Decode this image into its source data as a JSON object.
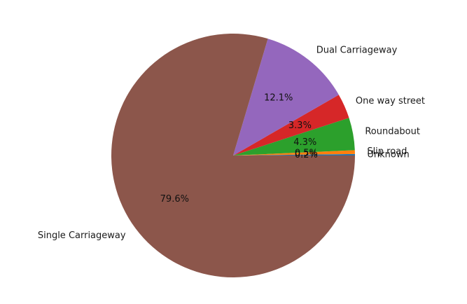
{
  "chart_data": {
    "type": "pie",
    "title": "",
    "slices": [
      {
        "label": "Unknown",
        "value": 0.2,
        "pct_label": "0.2%",
        "color": "#1f77b4"
      },
      {
        "label": "Slip road",
        "value": 0.5,
        "pct_label": "0.5%",
        "color": "#ff7f0e"
      },
      {
        "label": "Roundabout",
        "value": 4.3,
        "pct_label": "4.3%",
        "color": "#2ca02c"
      },
      {
        "label": "One way street",
        "value": 3.3,
        "pct_label": "3.3%",
        "color": "#d62728"
      },
      {
        "label": "Dual Carriageway",
        "value": 12.1,
        "pct_label": "12.1%",
        "color": "#9467bd"
      },
      {
        "label": "Single Carriageway",
        "value": 79.6,
        "pct_label": "79.6%",
        "color": "#8c564b"
      }
    ],
    "start_angle_deg": 0,
    "direction": "counterclockwise"
  }
}
